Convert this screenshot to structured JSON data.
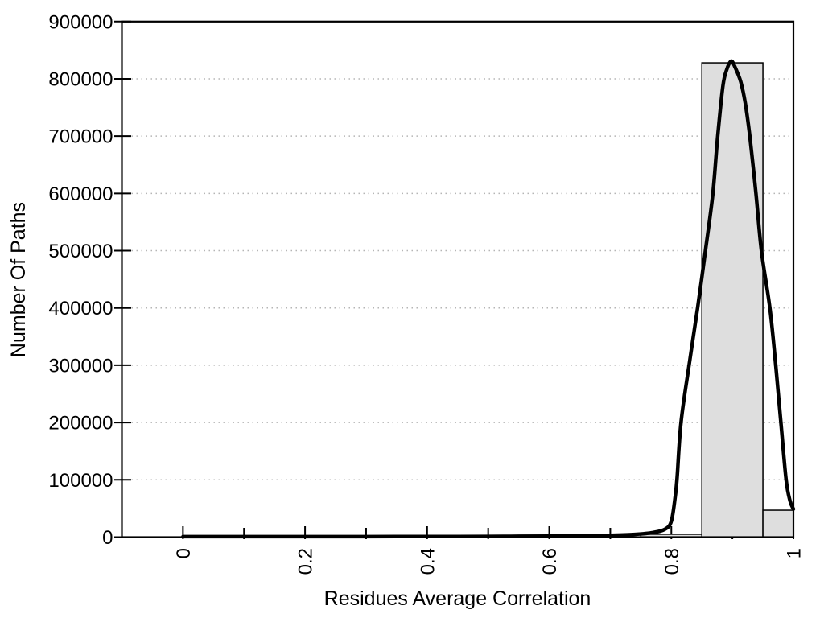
{
  "page": {
    "background": "#ffffff"
  },
  "chart_data": {
    "type": "bar",
    "subtype": "histogram-with-fit-curve",
    "title": "",
    "xlabel": "Residues Average Correlation",
    "ylabel": "Number Of Paths",
    "xlim": [
      -0.1,
      1.0
    ],
    "ylim": [
      0,
      900000
    ],
    "x_major_ticks": [
      0,
      0.2,
      0.4,
      0.6,
      0.8,
      1
    ],
    "x_major_tick_labels": [
      "0",
      "0.2",
      "0.4",
      "0.6",
      "0.8",
      "1"
    ],
    "x_minor_ticks": [
      0.1,
      0.3,
      0.5,
      0.7,
      0.9
    ],
    "x_tick_label_rotation": -90,
    "y_ticks": [
      0,
      100000,
      200000,
      300000,
      400000,
      500000,
      600000,
      700000,
      800000,
      900000
    ],
    "y_tick_labels": [
      "0",
      "100000",
      "200000",
      "300000",
      "400000",
      "500000",
      "600000",
      "700000",
      "800000",
      "900000"
    ],
    "grid": {
      "horizontal": true,
      "vertical": false,
      "style": "dotted"
    },
    "legend": "none",
    "bars": [
      {
        "x_start": 0.75,
        "x_end": 0.85,
        "value": 5000
      },
      {
        "x_start": 0.85,
        "x_end": 0.95,
        "value": 828000
      },
      {
        "x_start": 0.95,
        "x_end": 1.0,
        "value": 47000
      }
    ],
    "curve": {
      "name": "fit-curve",
      "points": [
        [
          0.0,
          800
        ],
        [
          0.05,
          800
        ],
        [
          0.1,
          800
        ],
        [
          0.15,
          800
        ],
        [
          0.2,
          800
        ],
        [
          0.25,
          850
        ],
        [
          0.3,
          900
        ],
        [
          0.35,
          950
        ],
        [
          0.4,
          1000
        ],
        [
          0.45,
          1100
        ],
        [
          0.5,
          1300
        ],
        [
          0.55,
          1500
        ],
        [
          0.6,
          1800
        ],
        [
          0.65,
          2300
        ],
        [
          0.7,
          3200
        ],
        [
          0.74,
          4800
        ],
        [
          0.77,
          8000
        ],
        [
          0.79,
          14000
        ],
        [
          0.8,
          28000
        ],
        [
          0.8065,
          72000
        ],
        [
          0.8095,
          105000
        ],
        [
          0.8158,
          200000
        ],
        [
          0.829,
          300000
        ],
        [
          0.843,
          400000
        ],
        [
          0.8565,
          505000
        ],
        [
          0.868,
          600000
        ],
        [
          0.876,
          700000
        ],
        [
          0.8845,
          788000
        ],
        [
          0.891,
          817000
        ],
        [
          0.898,
          831000
        ],
        [
          0.9045,
          820000
        ],
        [
          0.9136,
          795000
        ],
        [
          0.921,
          758000
        ],
        [
          0.9285,
          700000
        ],
        [
          0.9386,
          600000
        ],
        [
          0.9475,
          500000
        ],
        [
          0.9614,
          400000
        ],
        [
          0.971,
          300000
        ],
        [
          0.9795,
          200000
        ],
        [
          0.988,
          100000
        ],
        [
          0.9945,
          63000
        ],
        [
          1.0,
          49000
        ]
      ]
    },
    "colors": {
      "bar_fill": "#dedede",
      "bar_stroke": "#000000",
      "curve": "#000000",
      "grid": "#b5b5b5",
      "axis": "#000000",
      "text": "#000000",
      "background": "#ffffff"
    }
  }
}
